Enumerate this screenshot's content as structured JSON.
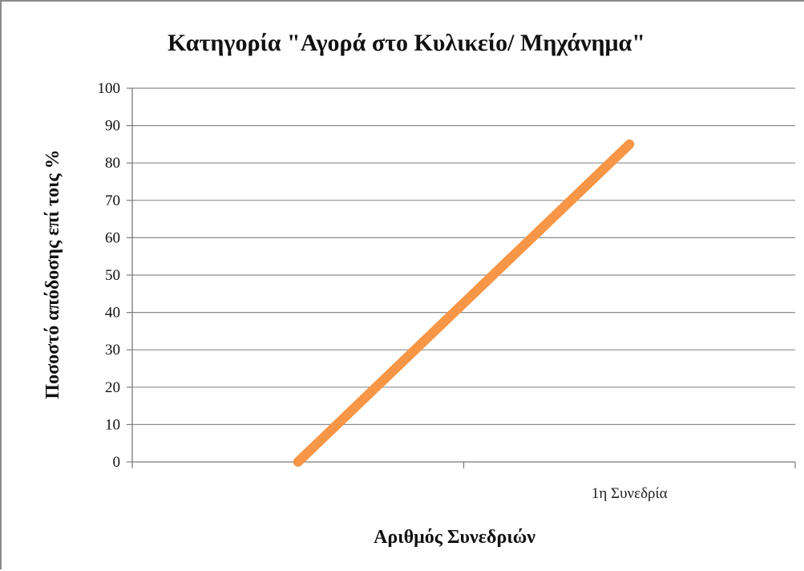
{
  "chart_data": {
    "type": "line",
    "title": "Κατηγορία \"Αγορά στο Κυλικείο/ Μηχάνημα\"",
    "xlabel": "Αριθμός Συνεδριών",
    "ylabel": "Ποσοστό απόδοσης επί τοις %",
    "categories": [
      "",
      "1η Συνεδρία"
    ],
    "series": [
      {
        "values": [
          0,
          85
        ],
        "color": "#f79646"
      }
    ],
    "ylim": [
      0,
      100
    ],
    "yticks": [
      "0",
      "10",
      "20",
      "30",
      "40",
      "50",
      "60",
      "70",
      "80",
      "90",
      "100"
    ],
    "grid": true,
    "legend": "none"
  }
}
